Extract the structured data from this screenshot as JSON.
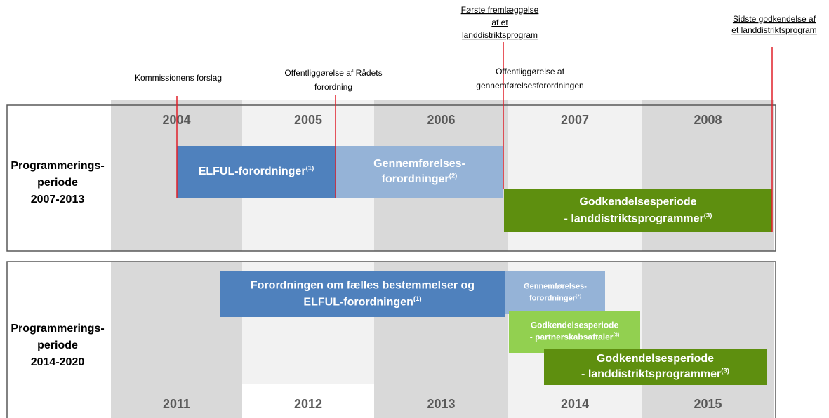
{
  "annotations": [
    {
      "lines": [
        "Kommissionens forslag"
      ]
    },
    {
      "lines": [
        "Offentliggørelse  af Rådets",
        "forordning"
      ]
    },
    {
      "lines": [
        "Offentliggørelse  af",
        "gennemførelsesforordningen"
      ]
    },
    {
      "lines": [
        "Første fremlæggelse",
        "af et",
        "landdistriktsprogram"
      ]
    },
    {
      "lines": [
        "Sidste godkendelse af",
        "et landdistriktsprogram"
      ]
    }
  ],
  "panels": [
    {
      "label": [
        "Programmerings-",
        "periode",
        "2007-2013"
      ],
      "years": [
        "2004",
        "2005",
        "2006",
        "2007",
        "2008"
      ],
      "bars": [
        {
          "lines": [
            "ELFUL-forordninger"
          ],
          "note": "(1)"
        },
        {
          "lines": [
            "Gennemførelses-",
            "forordninger"
          ],
          "note": "(2)"
        },
        {
          "lines": [
            "Godkendelsesperiode",
            "- landdistriktsprogrammer"
          ],
          "note": "(3)"
        }
      ]
    },
    {
      "label": [
        "Programmerings-",
        "periode",
        "2014-2020"
      ],
      "years": [
        "2011",
        "2012",
        "2013",
        "2014",
        "2015"
      ],
      "bars": [
        {
          "lines": [
            "Forordningen  om  fælles bestemmelser og",
            "ELFUL-forordningen"
          ],
          "note": "(1)"
        },
        {
          "lines": [
            "Gennemførelses-",
            "forordninger"
          ],
          "note": "(2)"
        },
        {
          "lines": [
            "Godkendelsesperiode",
            "- partnerskabsaftaler"
          ],
          "note": "(3)"
        },
        {
          "lines": [
            "Godkendelsesperiode",
            "- landdistriktsprogrammer"
          ],
          "note": "(3)"
        }
      ]
    }
  ]
}
